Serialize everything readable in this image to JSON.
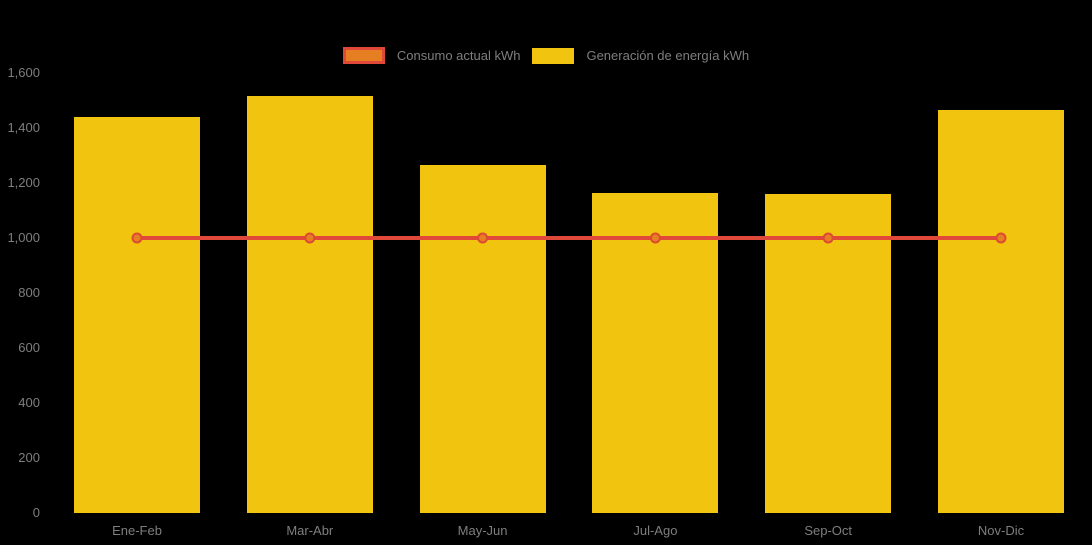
{
  "page": {
    "background_color": "#000000",
    "text_color": "#7E7E7E"
  },
  "legend": {
    "position": "top-center",
    "items": [
      {
        "label": "Consumo actual kWh",
        "swatch": "line-swatch",
        "fill": "#E67E22",
        "border": "#E0483A"
      },
      {
        "label": "Generación de energía kWh",
        "swatch": "bar-swatch",
        "fill": "#F1C40F"
      }
    ]
  },
  "chart_data": {
    "type": "bar",
    "categories": [
      "Ene-Feb",
      "Mar-Abr",
      "May-Jun",
      "Jul-Ago",
      "Sep-Oct",
      "Nov-Dic"
    ],
    "series": [
      {
        "name": "Consumo actual kWh",
        "type": "line",
        "color": "#E0483A",
        "marker_fill": "#E67E22",
        "marker_stroke": "#DC4A33",
        "values": [
          1000,
          1000,
          1000,
          1000,
          1000,
          1000
        ]
      },
      {
        "name": "Generación de energía kWh",
        "type": "bar",
        "color": "#F1C40F",
        "values": [
          1440,
          1515,
          1265,
          1165,
          1160,
          1465
        ]
      }
    ],
    "xlabel": "",
    "ylabel": "",
    "ylim": [
      0,
      1600
    ],
    "yticks": [
      {
        "value": 0,
        "label": "0"
      },
      {
        "value": 200,
        "label": "200"
      },
      {
        "value": 400,
        "label": "400"
      },
      {
        "value": 600,
        "label": "600"
      },
      {
        "value": 800,
        "label": "800"
      },
      {
        "value": 1000,
        "label": "1,000"
      },
      {
        "value": 1200,
        "label": "1,200"
      },
      {
        "value": 1400,
        "label": "1,400"
      },
      {
        "value": 1600,
        "label": "1,600"
      }
    ],
    "grid": false,
    "legend_position": "top-center",
    "axis_text_color": "#7E7E7E"
  }
}
